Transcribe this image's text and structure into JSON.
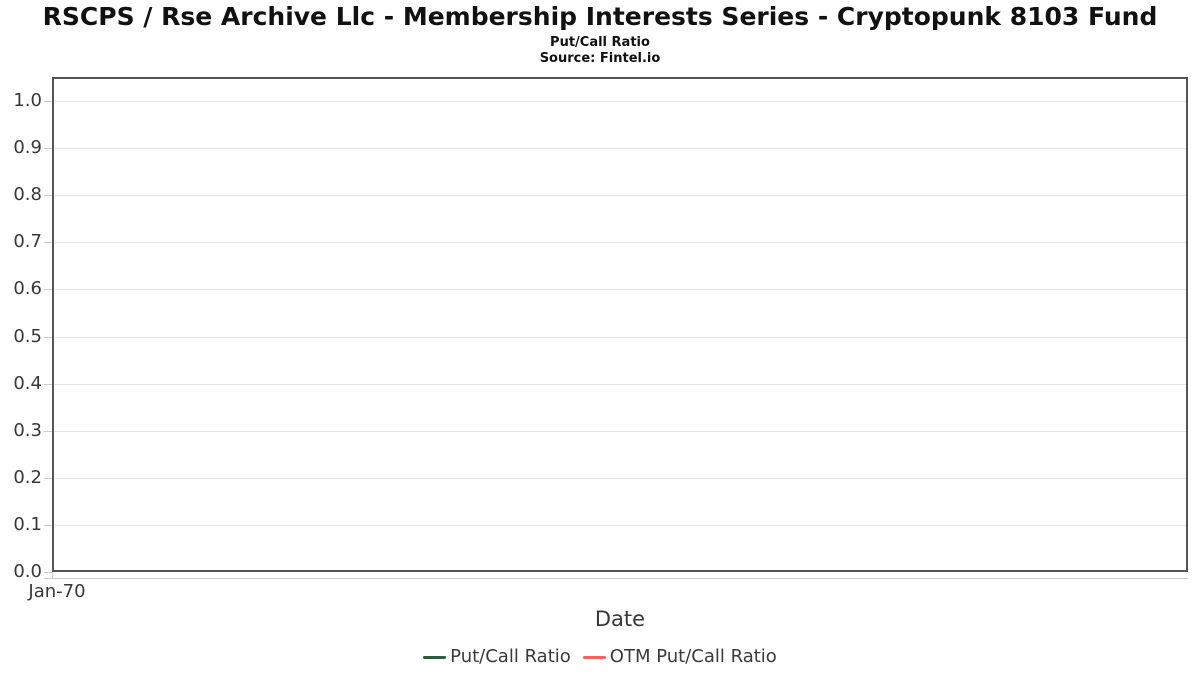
{
  "header": {
    "title": "RSCPS / Rse Archive Llc - Membership Interests Series - Cryptopunk 8103 Fund",
    "subtitle": "Put/Call Ratio",
    "source": "Source: Fintel.io"
  },
  "chart_data": {
    "type": "line",
    "title": "Put/Call Ratio",
    "xlabel": "Date",
    "ylabel": "",
    "x_tick_labels": [
      "Jan-70"
    ],
    "y_tick_labels": [
      "0.0",
      "0.1",
      "0.2",
      "0.3",
      "0.4",
      "0.5",
      "0.6",
      "0.7",
      "0.8",
      "0.9",
      "1.0"
    ],
    "ylim": [
      0.0,
      1.05
    ],
    "grid": "horizontal-only",
    "legend_position": "bottom-center",
    "series": [
      {
        "name": "Put/Call Ratio",
        "color": "#2b5d3f",
        "x": [],
        "y": []
      },
      {
        "name": "OTM Put/Call Ratio",
        "color": "#fa615c",
        "x": [],
        "y": []
      }
    ]
  },
  "colors": {
    "plot_border": "#555555",
    "gridline": "#e5e5e5",
    "tick": "#cccccc",
    "axis_text": "#383838",
    "title_text": "#111111"
  }
}
